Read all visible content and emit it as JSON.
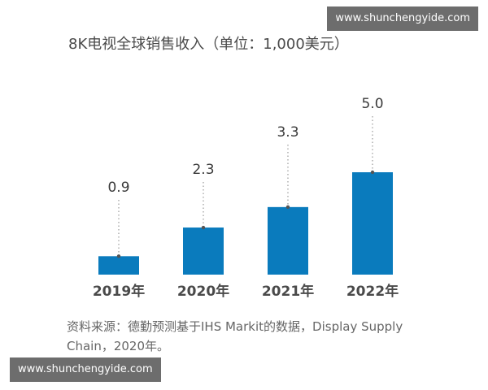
{
  "title": "8K电视全球销售收入（单位：1,000美元）",
  "source": "资料来源：德勤预测基于IHS Markit的数据，Display Supply Chain，2020年。",
  "watermarks": {
    "top": "www.shunchengyide.com",
    "bottom": "www.shunchengyide.com"
  },
  "colors": {
    "bar": "#0a7bbd",
    "leader": "#9a9a9a",
    "dot": "#555555"
  },
  "chart_data": {
    "type": "bar",
    "title": "8K电视全球销售收入（单位：1,000美元）",
    "categories": [
      "2019年",
      "2020年",
      "2021年",
      "2022年"
    ],
    "values": [
      0.9,
      2.3,
      3.3,
      5.0
    ],
    "value_labels": [
      "0.9",
      "2.3",
      "3.3",
      "5.0"
    ],
    "xlabel": "",
    "ylabel": "",
    "ylim": [
      0,
      5.0
    ],
    "grid": false,
    "data_labels": "above bars with dotted leader lines"
  }
}
